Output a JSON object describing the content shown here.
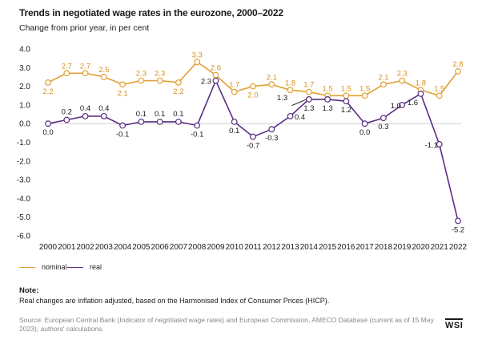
{
  "header": {
    "title": "Trends in negotiated wage rates in the eurozone, 2000–2022",
    "subtitle": "Change from prior year, in per cent"
  },
  "legend": {
    "nominal": "nominal",
    "real": "real"
  },
  "note": {
    "heading": "Note:",
    "text": "Real changes are inflation adjusted, based on the Harmonised Index of Consumer Prices (HICP)."
  },
  "source": "Source: European Central Bank (Indicator of negotiated wage rates) and European Commission, AMECO Database (current as of 15 May 2023); authors' calculations.",
  "logo": "WSI",
  "colors": {
    "nominal": "#e2a033",
    "real": "#5a2d82",
    "gridline": "#e0e0e0"
  },
  "chart_data": {
    "type": "line",
    "title": "Trends in negotiated wage rates in the eurozone, 2000–2022",
    "ylabel": "Change from prior year, in per cent",
    "xlabel": "",
    "ylim": [
      -6.0,
      4.0
    ],
    "yticks": [
      "4.0",
      "3.0",
      "2.0",
      "1.0",
      "0.0",
      "-1.0",
      "-2.0",
      "-3.0",
      "-4.0",
      "-5.0",
      "-6.0"
    ],
    "x": [
      "2000",
      "2001",
      "2002",
      "2003",
      "2004",
      "2005",
      "2006",
      "2007",
      "2008",
      "2009",
      "2010",
      "2011",
      "2012",
      "2013",
      "2014",
      "2015",
      "2016",
      "2017",
      "2018",
      "2019",
      "2020",
      "2021",
      "2022"
    ],
    "legend_position": "bottom-left",
    "series": [
      {
        "name": "nominal",
        "values": [
          2.2,
          2.7,
          2.7,
          2.5,
          2.1,
          2.3,
          2.3,
          2.2,
          3.3,
          2.6,
          1.7,
          2.0,
          2.1,
          1.8,
          1.7,
          1.5,
          1.5,
          1.5,
          2.1,
          2.3,
          1.8,
          1.5,
          2.8
        ],
        "labels": [
          "2.2",
          "2.7",
          "2.7",
          "2.5",
          "2.1",
          "2.3",
          "2.3",
          "2.2",
          "3.3",
          "2.6",
          "1.7",
          "2.0",
          "2.1",
          "1.8",
          "1.7",
          "1.5",
          "1.5",
          "1.5",
          "2.1",
          "2.3",
          "1.8",
          "1.5",
          "2.8"
        ]
      },
      {
        "name": "real",
        "values": [
          0.0,
          0.2,
          0.4,
          0.4,
          -0.1,
          0.1,
          0.1,
          0.1,
          -0.1,
          2.3,
          0.1,
          -0.7,
          -0.3,
          0.4,
          1.3,
          1.3,
          1.2,
          0.0,
          0.3,
          1.0,
          1.6,
          -1.1,
          -5.2
        ],
        "labels": [
          "0.0",
          "0.2",
          "0.4",
          "0.4",
          "-0.1",
          "0.1",
          "0.1",
          "0.1",
          "-0.1",
          "2.3",
          "0.1",
          "-0.7",
          "-0.3",
          "0.4",
          "1.3",
          "1.3",
          "1.2",
          "0.0",
          "0.3",
          "1.0",
          "1.6",
          "-1.1",
          "-5.2"
        ]
      }
    ],
    "annotations": [
      {
        "text": "1.3"
      }
    ]
  }
}
